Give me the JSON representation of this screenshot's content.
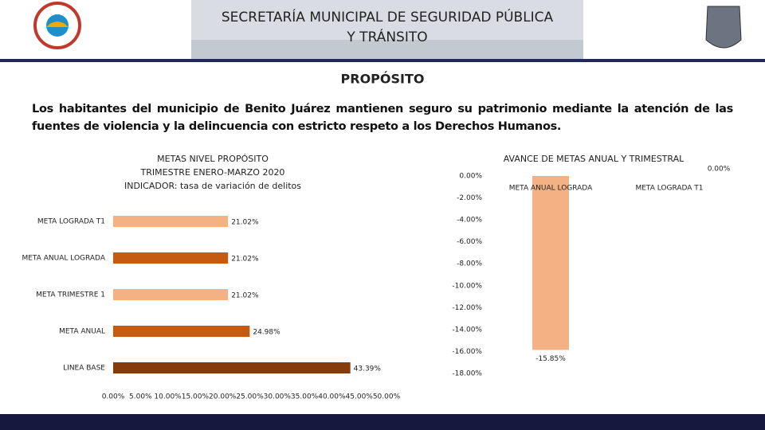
{
  "header": {
    "title": [
      "SECRETARÍA MUNICIPAL DE SEGURIDAD PÚBLICA",
      "Y TRÁNSITO"
    ]
  },
  "section_title": "PROPÓSITO",
  "description": "Los habitantes del municipio de Benito Juárez mantienen seguro su patrimonio mediante la atención de las fuentes de violencia y la delincuencia con estricto respeto a los Derechos Humanos.",
  "chart_data": [
    {
      "type": "hbar",
      "title": [
        "METAS NIVEL PROPÓSITO",
        "TRIMESTRE ENERO-MARZO 2020",
        "INDICADOR: tasa de variación de delitos"
      ],
      "categories": [
        "META LOGRADA T1",
        "META ANUAL LOGRADA",
        "META TRIMESTRE 1",
        "META ANUAL",
        "LINEA BASE"
      ],
      "values": [
        21.02,
        21.02,
        21.02,
        24.98,
        43.39
      ],
      "value_labels": [
        "21.02%",
        "21.02%",
        "21.02%",
        "24.98%",
        "43.39%"
      ],
      "colors": [
        "#f4b183",
        "#c55a11",
        "#f4b183",
        "#c55a11",
        "#843c0c"
      ],
      "xlim": [
        0,
        50
      ],
      "xticks": [
        {
          "value": 0,
          "label": "0.00%"
        },
        {
          "value": 5,
          "label": "5.00%"
        },
        {
          "value": 10,
          "label": "10.00%"
        },
        {
          "value": 15,
          "label": "15.00%"
        },
        {
          "value": 20,
          "label": "20.00%"
        },
        {
          "value": 25,
          "label": "25.00%"
        },
        {
          "value": 30,
          "label": "30.00%"
        },
        {
          "value": 35,
          "label": "35.00%"
        },
        {
          "value": 40,
          "label": "40.00%"
        },
        {
          "value": 45,
          "label": "45.00%"
        },
        {
          "value": 50,
          "label": "50.00%"
        }
      ]
    },
    {
      "type": "bar",
      "title": "AVANCE DE METAS ANUAL Y TRIMESTRAL",
      "categories": [
        "META ANUAL LOGRADA",
        "META LOGRADA T1"
      ],
      "values": [
        -15.85,
        0
      ],
      "value_labels": [
        "-15.85%",
        "0.00%"
      ],
      "color": "#f4b183",
      "ylim": [
        -18,
        0
      ],
      "yticks": [
        {
          "value": 0,
          "label": "0.00%"
        },
        {
          "value": -2,
          "label": "-2.00%"
        },
        {
          "value": -4,
          "label": "-4.00%"
        },
        {
          "value": -6,
          "label": "-6.00%"
        },
        {
          "value": -8,
          "label": "-8.00%"
        },
        {
          "value": -10,
          "label": "-10.00%"
        },
        {
          "value": -12,
          "label": "-12.00%"
        },
        {
          "value": -14,
          "label": "-14.00%"
        },
        {
          "value": -16,
          "label": "-16.00%"
        },
        {
          "value": -18,
          "label": "-18.00%"
        }
      ]
    }
  ]
}
